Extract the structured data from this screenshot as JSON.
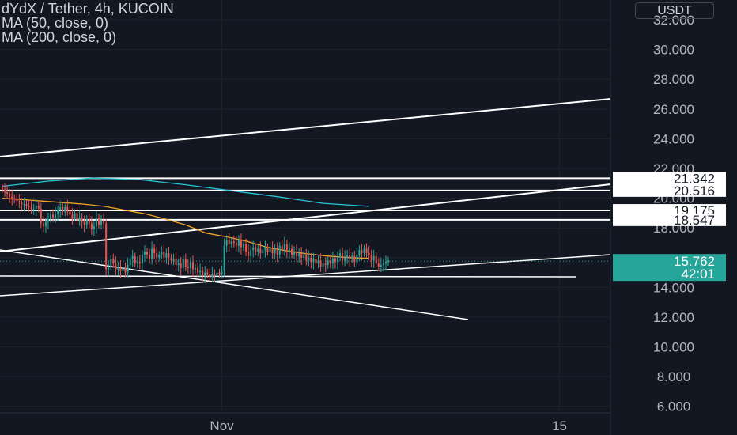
{
  "legend": {
    "title": "dYdX / Tether, 4h, KUCOIN",
    "ma50": "MA (50, close, 0)",
    "ma200": "MA (200, close, 0)"
  },
  "currency": "USDT",
  "colors": {
    "background": "#131722",
    "up": "#26a69a",
    "down": "#ef5350",
    "ma50": "#f5a623",
    "ma200": "#26c6da",
    "drawing": "#ffffff",
    "axis_text": "#b2b5be"
  },
  "chart_data": {
    "type": "candlestick",
    "ylim": [
      5.0,
      33.5
    ],
    "y_ticks": [
      "32.000",
      "30.000",
      "28.000",
      "26.000",
      "24.000",
      "22.000",
      "20.000",
      "18.000",
      "14.000",
      "12.000",
      "10.000",
      "8.000",
      "6.000"
    ],
    "x_ticks": [
      {
        "label": "Nov",
        "index": 91
      },
      {
        "label": "15",
        "index": 231
      }
    ],
    "price_levels": [
      {
        "value": 21.342,
        "label": "21.342"
      },
      {
        "value": 20.516,
        "label": "20.516"
      },
      {
        "value": 19.175,
        "label": "19.175"
      },
      {
        "value": 18.547,
        "label": "18.547"
      }
    ],
    "last_price": {
      "value": 15.762,
      "label": "15.762",
      "countdown": "42:01"
    },
    "closes": [
      20.6,
      20.4,
      20.3,
      20.1,
      20.0,
      19.9,
      19.8,
      19.7,
      19.6,
      19.6,
      19.5,
      19.4,
      19.3,
      19.3,
      19.5,
      19.3,
      18.3,
      18.1,
      18.4,
      18.6,
      18.9,
      18.7,
      18.9,
      19.2,
      19.4,
      19.1,
      19.4,
      19.2,
      18.9,
      18.7,
      19.0,
      18.5,
      18.7,
      18.4,
      18.2,
      18.6,
      18.3,
      17.9,
      18.1,
      18.7,
      18.2,
      18.5,
      18.3,
      15.2,
      15.4,
      15.9,
      15.6,
      15.2,
      15.4,
      15.1,
      15.3,
      15.0,
      15.5,
      15.9,
      16.1,
      15.6,
      15.7,
      15.6,
      16.2,
      16.4,
      16.2,
      15.9,
      16.6,
      16.3,
      16.0,
      16.2,
      16.4,
      16.0,
      16.3,
      16.0,
      15.8,
      15.9,
      15.5,
      15.6,
      15.3,
      15.9,
      15.4,
      15.3,
      15.7,
      15.2,
      15.3,
      15.0,
      15.1,
      14.8,
      15.0,
      14.9,
      14.7,
      14.9,
      14.8,
      15.0,
      14.9,
      15.1,
      16.8,
      17.2,
      16.9,
      17.1,
      17.0,
      16.8,
      17.2,
      16.7,
      16.9,
      16.4,
      16.1,
      16.5,
      16.7,
      16.4,
      16.6,
      16.3,
      16.5,
      16.7,
      16.4,
      16.6,
      16.3,
      16.6,
      16.2,
      16.8,
      16.5,
      16.9,
      16.4,
      16.6,
      16.2,
      16.4,
      16.1,
      16.3,
      16.0,
      16.2,
      15.8,
      16.0,
      15.7,
      15.9,
      15.6,
      15.8,
      15.4,
      15.6,
      15.5,
      15.8,
      15.6,
      15.9,
      15.7,
      16.0,
      16.3,
      15.8,
      16.0,
      16.2,
      15.9,
      16.1,
      15.7,
      16.2,
      16.5,
      16.3,
      16.6,
      16.3,
      16.2,
      15.8,
      16.1,
      15.6,
      15.4,
      15.5,
      15.6,
      15.7,
      15.8
    ],
    "ma50": [
      20.0,
      19.9,
      19.8,
      19.7,
      19.6,
      19.45,
      19.2,
      18.95,
      18.6,
      18.2,
      17.65,
      17.4,
      17.1,
      16.7,
      16.45,
      16.25,
      16.1,
      16.0,
      15.95
    ],
    "ma200": [
      20.8,
      21.15,
      21.35,
      21.25,
      20.9,
      20.5,
      20.1,
      19.65,
      19.45
    ]
  }
}
